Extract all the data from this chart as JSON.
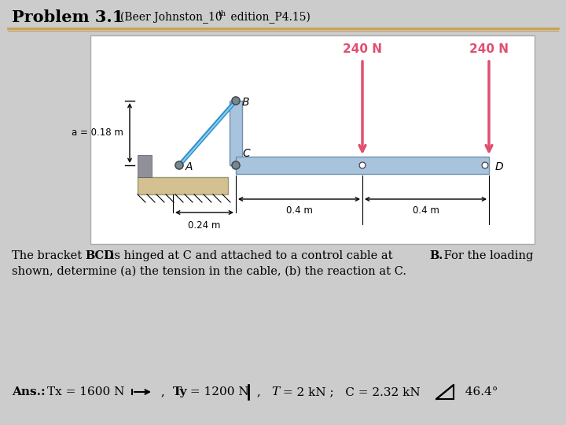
{
  "bg_color": "#cccccc",
  "title_main": "Problem 3.1",
  "title_sub_pre": "(Beer Johnston_10",
  "title_sub_sup": "th",
  "title_sub_post": " edition_P4.15)",
  "desc_line1_parts": [
    {
      "text": "The bracket ",
      "bold": false
    },
    {
      "text": "BCD",
      "bold": true
    },
    {
      "text": " is hinged at C and attached to a control cable at ",
      "bold": false
    },
    {
      "text": "B.",
      "bold": true
    },
    {
      "text": " For the loading",
      "bold": false
    }
  ],
  "desc_line2": "shown, determine (a) the tension in the cable, (b) the reaction at C.",
  "ans_line": "Ans.:  Tx = 1600 N",
  "ans_ty": " ,  Ty = 1200 N",
  "ans_rest": " ,   T = 2 kN ;   C = 2.32 kN",
  "ans_angle": "  46.4°",
  "force_color": "#e05070",
  "cable_color": "#5aabde",
  "bracket_color": "#a8c4dc",
  "bracket_edge": "#7090b0",
  "ground_fill": "#d4c090",
  "bg_diagram": "#ffffff",
  "separator_color": "#c8a050",
  "force_label": "240 N",
  "dim_a": "a = 0.18 m",
  "dim_024": "0.24 m",
  "dim_04a": "0.4 m",
  "dim_04b": "0.4 m"
}
